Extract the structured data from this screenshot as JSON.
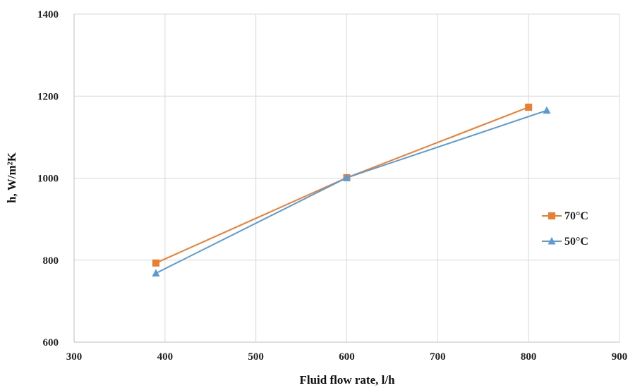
{
  "chart_data": {
    "type": "line",
    "title": "",
    "xlabel": "Fluid flow rate, l/h",
    "ylabel": "h, W/m²K",
    "xlim": [
      300,
      900
    ],
    "ylim": [
      600,
      1400
    ],
    "xticks": [
      300,
      400,
      500,
      600,
      700,
      800,
      900
    ],
    "yticks": [
      600,
      800,
      1000,
      1200,
      1400
    ],
    "xtick_labels": [
      "300",
      "400",
      "500",
      "600",
      "700",
      "800",
      "900"
    ],
    "ytick_labels": [
      "600",
      "800",
      "1000",
      "1200",
      "1400"
    ],
    "grid": true,
    "legend_position": "right",
    "series": [
      {
        "name": "70°C",
        "marker": "square",
        "color": "#ED7D31",
        "points": [
          {
            "x": 390,
            "y": 793
          },
          {
            "x": 600,
            "y": 1001
          },
          {
            "x": 800,
            "y": 1173
          }
        ]
      },
      {
        "name": "50°C",
        "marker": "triangle",
        "color": "#5B9BD5",
        "points": [
          {
            "x": 390,
            "y": 768
          },
          {
            "x": 600,
            "y": 1001
          },
          {
            "x": 820,
            "y": 1165
          }
        ]
      }
    ]
  }
}
